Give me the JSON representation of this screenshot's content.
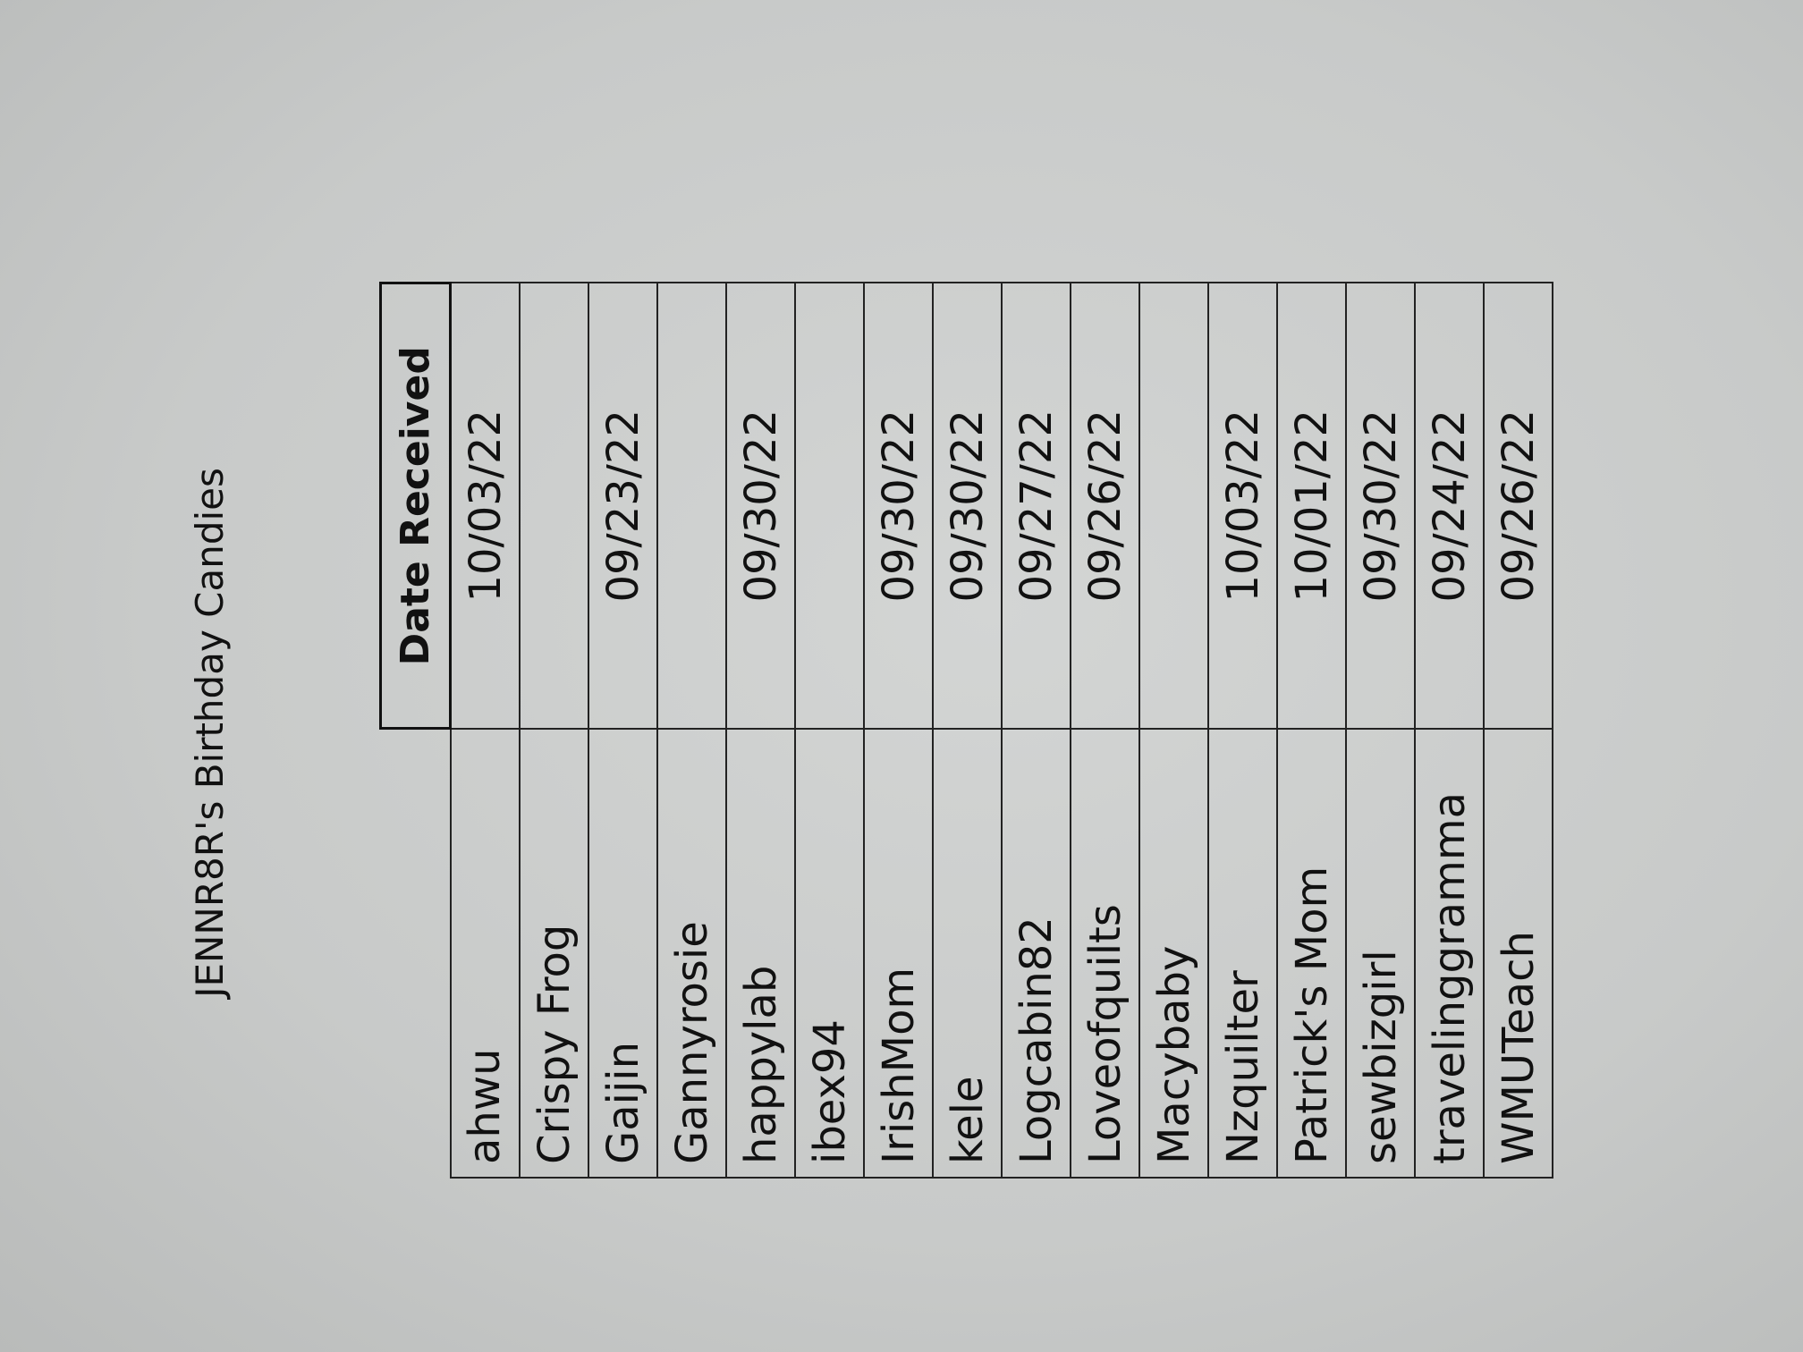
{
  "document": {
    "title": "JENNR8R's Birthday Candies",
    "table": {
      "header": "Date Received",
      "rows": [
        {
          "name": "ahwu",
          "date": "10/03/22"
        },
        {
          "name": "Crispy Frog",
          "date": ""
        },
        {
          "name": "Gaijin",
          "date": "09/23/22"
        },
        {
          "name": "Gannyrosie",
          "date": ""
        },
        {
          "name": "happylab",
          "date": "09/30/22"
        },
        {
          "name": "ibex94",
          "date": ""
        },
        {
          "name": "IrishMom",
          "date": "09/30/22"
        },
        {
          "name": "kele",
          "date": "09/30/22"
        },
        {
          "name": "Logcabin82",
          "date": "09/27/22"
        },
        {
          "name": "Loveofquilts",
          "date": "09/26/22"
        },
        {
          "name": "Macybaby",
          "date": ""
        },
        {
          "name": "Nzquilter",
          "date": "10/03/22"
        },
        {
          "name": "Patrick's Mom",
          "date": "10/01/22"
        },
        {
          "name": "sewbizgirl",
          "date": "09/30/22"
        },
        {
          "name": "travelinggramma",
          "date": "09/24/22"
        },
        {
          "name": "WMUTeach",
          "date": "09/26/22"
        }
      ]
    }
  }
}
